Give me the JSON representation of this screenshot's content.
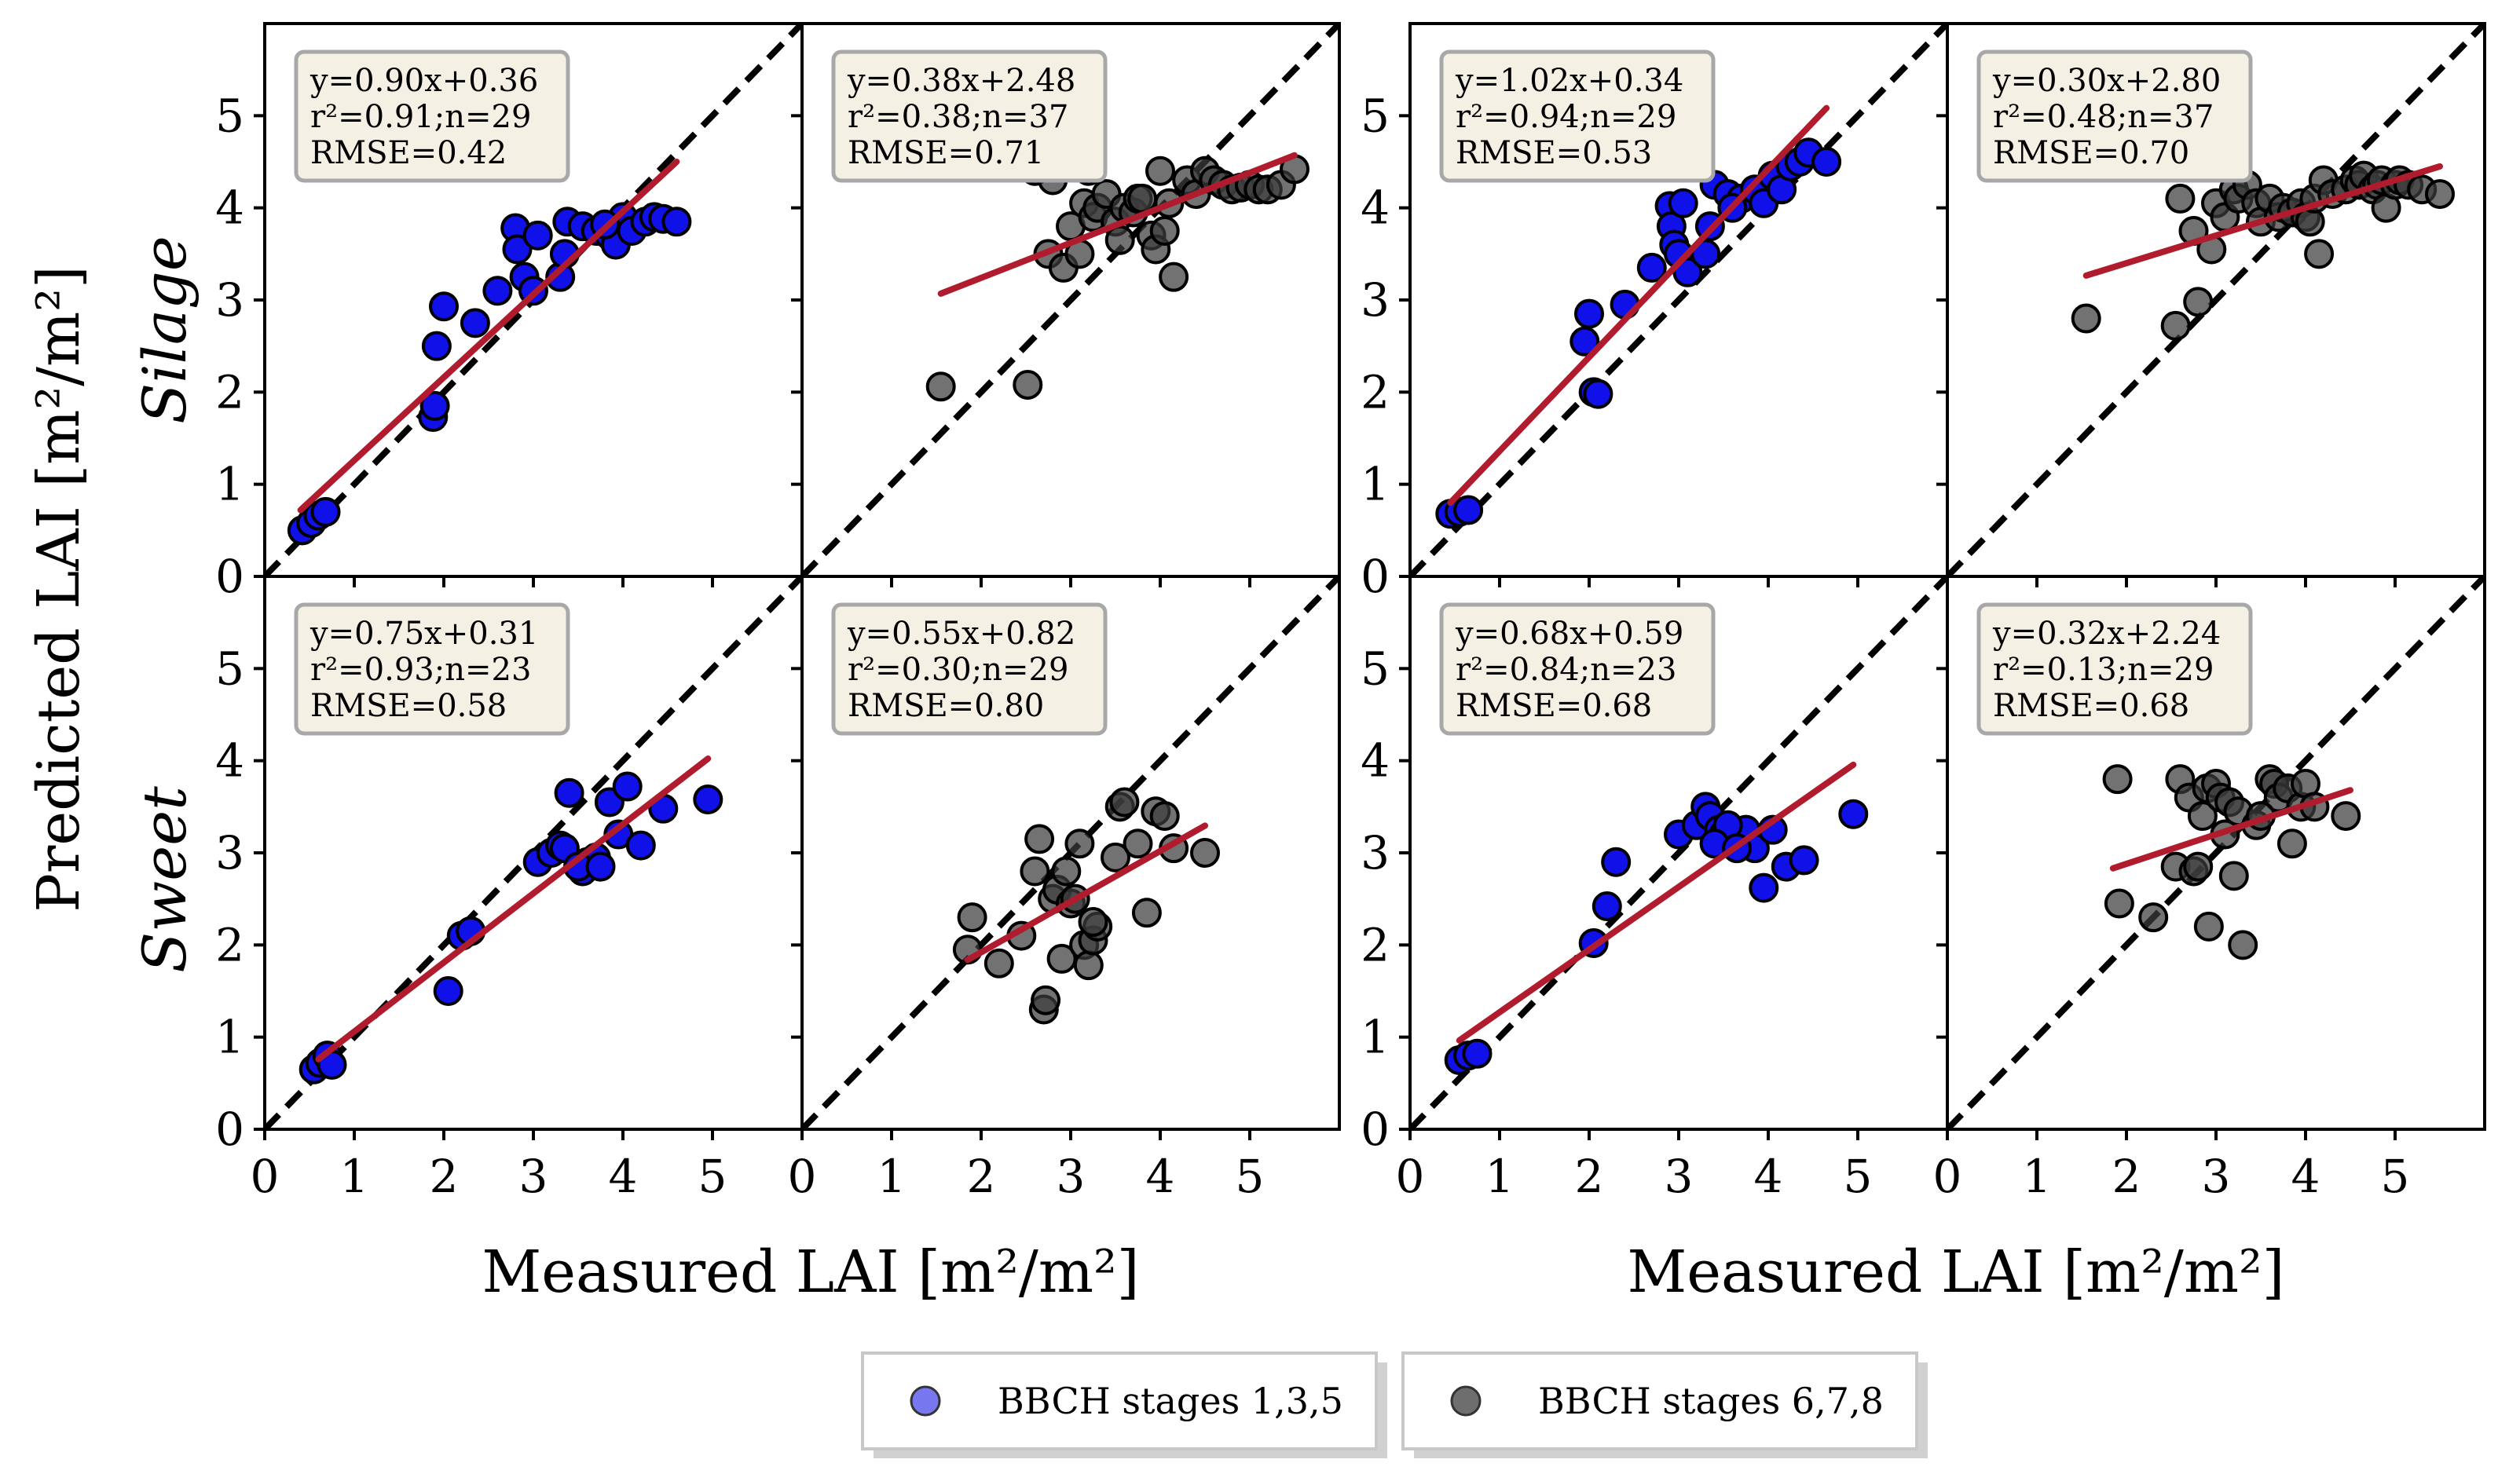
{
  "colors": {
    "early": "#1010e8",
    "early_legend": "#7777f0",
    "late": "#3c3c3c",
    "late_legend": "#6e6e6e",
    "fit_line": "#b01c2e",
    "identity_line": "#000000",
    "stat_box_fill": "#f5f0e4",
    "stat_box_border": "#a8a8a8"
  },
  "ylabel": "Predicted LAI [m²/m²]",
  "xlabels": [
    "Measured LAI [m²/m²]",
    "Measured LAI [m²/m²]"
  ],
  "row_labels": [
    "Silage",
    "Sweet"
  ],
  "legend": [
    {
      "label": "BBCH stages 1,3,5",
      "color_key": "early_legend"
    },
    {
      "label": "BBCH stages 6,7,8",
      "color_key": "late_legend"
    }
  ],
  "chart_data": {
    "type": "scatter",
    "xlim": [
      0,
      6
    ],
    "ylim": [
      0,
      6
    ],
    "xticks": [
      "0",
      "1",
      "2",
      "3",
      "4",
      "5"
    ],
    "yticks": [
      "0",
      "1",
      "2",
      "3",
      "4",
      "5"
    ],
    "panels": [
      {
        "row": 0,
        "col": 0,
        "group": "early",
        "stats": {
          "eq": "y=0.90x+0.36",
          "r2": "r²=0.91;n=29",
          "rmse": "RMSE=0.42"
        },
        "fit": {
          "slope": 0.9,
          "intercept": 0.36,
          "x": [
            0.4,
            4.6
          ]
        },
        "points": [
          [
            0.42,
            0.5
          ],
          [
            0.52,
            0.58
          ],
          [
            0.6,
            0.66
          ],
          [
            0.68,
            0.7
          ],
          [
            1.88,
            1.73
          ],
          [
            1.9,
            1.85
          ],
          [
            1.92,
            2.5
          ],
          [
            2.0,
            2.93
          ],
          [
            2.35,
            2.75
          ],
          [
            2.6,
            3.1
          ],
          [
            2.8,
            3.78
          ],
          [
            2.82,
            3.55
          ],
          [
            2.9,
            3.25
          ],
          [
            3.0,
            3.1
          ],
          [
            3.05,
            3.7
          ],
          [
            3.3,
            3.25
          ],
          [
            3.35,
            3.5
          ],
          [
            3.38,
            3.85
          ],
          [
            3.55,
            3.8
          ],
          [
            3.7,
            3.75
          ],
          [
            3.85,
            3.7
          ],
          [
            3.92,
            3.6
          ],
          [
            4.0,
            3.9
          ],
          [
            4.1,
            3.75
          ],
          [
            4.25,
            3.85
          ],
          [
            4.35,
            3.9
          ],
          [
            4.45,
            3.88
          ],
          [
            4.6,
            3.85
          ],
          [
            3.8,
            3.82
          ]
        ]
      },
      {
        "row": 0,
        "col": 1,
        "group": "late",
        "stats": {
          "eq": "y=0.38x+2.48",
          "r2": "r²=0.38;n=37",
          "rmse": "RMSE=0.71"
        },
        "fit": {
          "slope": 0.38,
          "intercept": 2.48,
          "x": [
            1.55,
            5.5
          ]
        },
        "points": [
          [
            1.55,
            2.06
          ],
          [
            2.52,
            2.08
          ],
          [
            2.6,
            4.4
          ],
          [
            2.75,
            3.5
          ],
          [
            2.8,
            4.3
          ],
          [
            2.92,
            3.35
          ],
          [
            3.0,
            3.8
          ],
          [
            3.1,
            3.5
          ],
          [
            3.15,
            4.05
          ],
          [
            3.2,
            4.4
          ],
          [
            3.25,
            3.9
          ],
          [
            3.3,
            4.0
          ],
          [
            3.4,
            4.15
          ],
          [
            3.5,
            3.85
          ],
          [
            3.55,
            3.65
          ],
          [
            3.6,
            4.0
          ],
          [
            3.7,
            3.95
          ],
          [
            3.75,
            4.1
          ],
          [
            3.8,
            4.1
          ],
          [
            3.9,
            3.7
          ],
          [
            3.95,
            3.55
          ],
          [
            4.0,
            4.4
          ],
          [
            4.05,
            3.75
          ],
          [
            4.1,
            4.05
          ],
          [
            4.15,
            3.25
          ],
          [
            4.3,
            4.3
          ],
          [
            4.4,
            4.15
          ],
          [
            4.5,
            4.4
          ],
          [
            4.6,
            4.3
          ],
          [
            4.7,
            4.25
          ],
          [
            4.8,
            4.2
          ],
          [
            4.9,
            4.22
          ],
          [
            5.0,
            4.25
          ],
          [
            5.1,
            4.2
          ],
          [
            5.2,
            4.2
          ],
          [
            5.35,
            4.25
          ],
          [
            5.5,
            4.42
          ]
        ]
      },
      {
        "row": 0,
        "col": 2,
        "group": "early",
        "stats": {
          "eq": "y=1.02x+0.34",
          "r2": "r²=0.94;n=29",
          "rmse": "RMSE=0.53"
        },
        "fit": {
          "slope": 1.02,
          "intercept": 0.34,
          "x": [
            0.45,
            4.65
          ]
        },
        "points": [
          [
            0.45,
            0.68
          ],
          [
            0.55,
            0.7
          ],
          [
            0.65,
            0.72
          ],
          [
            1.95,
            2.55
          ],
          [
            2.0,
            2.85
          ],
          [
            2.05,
            2.0
          ],
          [
            2.1,
            1.98
          ],
          [
            2.4,
            2.95
          ],
          [
            2.7,
            3.35
          ],
          [
            2.9,
            4.02
          ],
          [
            2.92,
            3.8
          ],
          [
            2.95,
            3.6
          ],
          [
            3.0,
            3.5
          ],
          [
            3.05,
            4.05
          ],
          [
            3.1,
            3.3
          ],
          [
            3.3,
            3.5
          ],
          [
            3.35,
            3.8
          ],
          [
            3.4,
            4.25
          ],
          [
            3.55,
            4.15
          ],
          [
            3.7,
            4.1
          ],
          [
            3.85,
            4.2
          ],
          [
            3.95,
            4.05
          ],
          [
            4.05,
            4.35
          ],
          [
            4.15,
            4.2
          ],
          [
            4.25,
            4.45
          ],
          [
            4.35,
            4.5
          ],
          [
            4.45,
            4.6
          ],
          [
            4.65,
            4.5
          ],
          [
            3.6,
            4.0
          ]
        ]
      },
      {
        "row": 0,
        "col": 3,
        "group": "late",
        "stats": {
          "eq": "y=0.30x+2.80",
          "r2": "r²=0.48;n=37",
          "rmse": "RMSE=0.70"
        },
        "fit": {
          "slope": 0.3,
          "intercept": 2.8,
          "x": [
            1.55,
            5.5
          ]
        },
        "points": [
          [
            1.55,
            2.8
          ],
          [
            2.55,
            2.72
          ],
          [
            2.6,
            4.1
          ],
          [
            2.75,
            3.75
          ],
          [
            2.8,
            2.98
          ],
          [
            2.95,
            3.55
          ],
          [
            3.0,
            4.05
          ],
          [
            3.1,
            3.9
          ],
          [
            3.2,
            4.2
          ],
          [
            3.25,
            4.1
          ],
          [
            3.35,
            4.25
          ],
          [
            3.45,
            4.05
          ],
          [
            3.5,
            3.85
          ],
          [
            3.6,
            4.1
          ],
          [
            3.7,
            3.9
          ],
          [
            3.75,
            4.0
          ],
          [
            3.85,
            3.95
          ],
          [
            3.95,
            4.05
          ],
          [
            4.0,
            3.9
          ],
          [
            4.05,
            3.85
          ],
          [
            4.1,
            4.1
          ],
          [
            4.15,
            3.5
          ],
          [
            4.2,
            4.3
          ],
          [
            4.3,
            4.15
          ],
          [
            4.45,
            4.2
          ],
          [
            4.55,
            4.3
          ],
          [
            4.6,
            4.25
          ],
          [
            4.65,
            4.35
          ],
          [
            4.75,
            4.2
          ],
          [
            4.8,
            4.25
          ],
          [
            4.85,
            4.3
          ],
          [
            4.9,
            4.0
          ],
          [
            5.0,
            4.25
          ],
          [
            5.05,
            4.3
          ],
          [
            5.15,
            4.25
          ],
          [
            5.3,
            4.2
          ],
          [
            5.5,
            4.15
          ]
        ]
      },
      {
        "row": 1,
        "col": 0,
        "group": "early",
        "stats": {
          "eq": "y=0.75x+0.31",
          "r2": "r²=0.93;n=23",
          "rmse": "RMSE=0.58"
        },
        "fit": {
          "slope": 0.75,
          "intercept": 0.31,
          "x": [
            0.6,
            4.95
          ]
        },
        "points": [
          [
            0.55,
            0.65
          ],
          [
            0.62,
            0.72
          ],
          [
            0.7,
            0.8
          ],
          [
            0.75,
            0.7
          ],
          [
            2.05,
            1.5
          ],
          [
            2.2,
            2.1
          ],
          [
            2.3,
            2.15
          ],
          [
            3.05,
            2.9
          ],
          [
            3.2,
            3.0
          ],
          [
            3.3,
            3.08
          ],
          [
            3.4,
            3.65
          ],
          [
            3.55,
            2.8
          ],
          [
            3.6,
            2.9
          ],
          [
            3.7,
            2.95
          ],
          [
            3.85,
            3.55
          ],
          [
            3.95,
            3.2
          ],
          [
            4.05,
            3.72
          ],
          [
            4.2,
            3.08
          ],
          [
            4.45,
            3.48
          ],
          [
            4.95,
            3.58
          ],
          [
            3.35,
            3.05
          ],
          [
            3.5,
            2.85
          ],
          [
            3.75,
            2.85
          ]
        ]
      },
      {
        "row": 1,
        "col": 1,
        "group": "late",
        "stats": {
          "eq": "y=0.55x+0.82",
          "r2": "r²=0.30;n=29",
          "rmse": "RMSE=0.80"
        },
        "fit": {
          "slope": 0.55,
          "intercept": 0.82,
          "x": [
            1.85,
            4.5
          ]
        },
        "points": [
          [
            1.85,
            1.95
          ],
          [
            1.9,
            2.3
          ],
          [
            2.2,
            1.8
          ],
          [
            2.45,
            2.1
          ],
          [
            2.6,
            2.8
          ],
          [
            2.65,
            3.15
          ],
          [
            2.7,
            1.3
          ],
          [
            2.72,
            1.4
          ],
          [
            2.8,
            2.5
          ],
          [
            2.85,
            2.6
          ],
          [
            2.9,
            1.85
          ],
          [
            2.95,
            2.8
          ],
          [
            3.0,
            2.45
          ],
          [
            3.05,
            2.5
          ],
          [
            3.1,
            3.1
          ],
          [
            3.15,
            2.0
          ],
          [
            3.2,
            1.78
          ],
          [
            3.25,
            2.05
          ],
          [
            3.3,
            2.2
          ],
          [
            3.5,
            2.95
          ],
          [
            3.55,
            3.5
          ],
          [
            3.6,
            3.55
          ],
          [
            3.75,
            3.1
          ],
          [
            3.85,
            2.35
          ],
          [
            3.95,
            3.45
          ],
          [
            4.05,
            3.4
          ],
          [
            4.15,
            3.05
          ],
          [
            4.5,
            3.0
          ],
          [
            3.25,
            2.25
          ]
        ]
      },
      {
        "row": 1,
        "col": 2,
        "group": "early",
        "stats": {
          "eq": "y=0.68x+0.59",
          "r2": "r²=0.84;n=23",
          "rmse": "RMSE=0.68"
        },
        "fit": {
          "slope": 0.68,
          "intercept": 0.59,
          "x": [
            0.55,
            4.95
          ]
        },
        "points": [
          [
            0.55,
            0.75
          ],
          [
            0.65,
            0.8
          ],
          [
            0.75,
            0.82
          ],
          [
            2.05,
            2.02
          ],
          [
            2.2,
            2.42
          ],
          [
            2.3,
            2.9
          ],
          [
            3.0,
            3.2
          ],
          [
            3.2,
            3.3
          ],
          [
            3.3,
            3.5
          ],
          [
            3.35,
            3.4
          ],
          [
            3.45,
            3.25
          ],
          [
            3.5,
            3.2
          ],
          [
            3.6,
            3.15
          ],
          [
            3.75,
            3.25
          ],
          [
            3.85,
            3.05
          ],
          [
            3.95,
            2.62
          ],
          [
            4.05,
            3.25
          ],
          [
            4.2,
            2.85
          ],
          [
            4.4,
            2.92
          ],
          [
            4.95,
            3.42
          ],
          [
            3.55,
            3.3
          ],
          [
            3.4,
            3.1
          ],
          [
            3.65,
            3.05
          ]
        ]
      },
      {
        "row": 1,
        "col": 3,
        "group": "late",
        "stats": {
          "eq": "y=0.32x+2.24",
          "r2": "r²=0.13;n=29",
          "rmse": "RMSE=0.68"
        },
        "fit": {
          "slope": 0.32,
          "intercept": 2.24,
          "x": [
            1.85,
            4.5
          ]
        },
        "points": [
          [
            1.9,
            3.8
          ],
          [
            1.92,
            2.45
          ],
          [
            2.3,
            2.3
          ],
          [
            2.55,
            2.85
          ],
          [
            2.6,
            3.8
          ],
          [
            2.7,
            3.6
          ],
          [
            2.75,
            2.8
          ],
          [
            2.8,
            2.85
          ],
          [
            2.85,
            3.4
          ],
          [
            2.9,
            3.7
          ],
          [
            2.92,
            2.2
          ],
          [
            3.0,
            3.75
          ],
          [
            3.05,
            3.6
          ],
          [
            3.1,
            3.2
          ],
          [
            3.15,
            3.55
          ],
          [
            3.2,
            2.75
          ],
          [
            3.25,
            3.45
          ],
          [
            3.3,
            2.0
          ],
          [
            3.45,
            3.3
          ],
          [
            3.6,
            3.8
          ],
          [
            3.65,
            3.75
          ],
          [
            3.7,
            3.6
          ],
          [
            3.8,
            3.7
          ],
          [
            3.85,
            3.1
          ],
          [
            3.95,
            3.5
          ],
          [
            4.0,
            3.75
          ],
          [
            4.1,
            3.5
          ],
          [
            4.45,
            3.4
          ],
          [
            3.5,
            3.4
          ]
        ]
      }
    ]
  }
}
